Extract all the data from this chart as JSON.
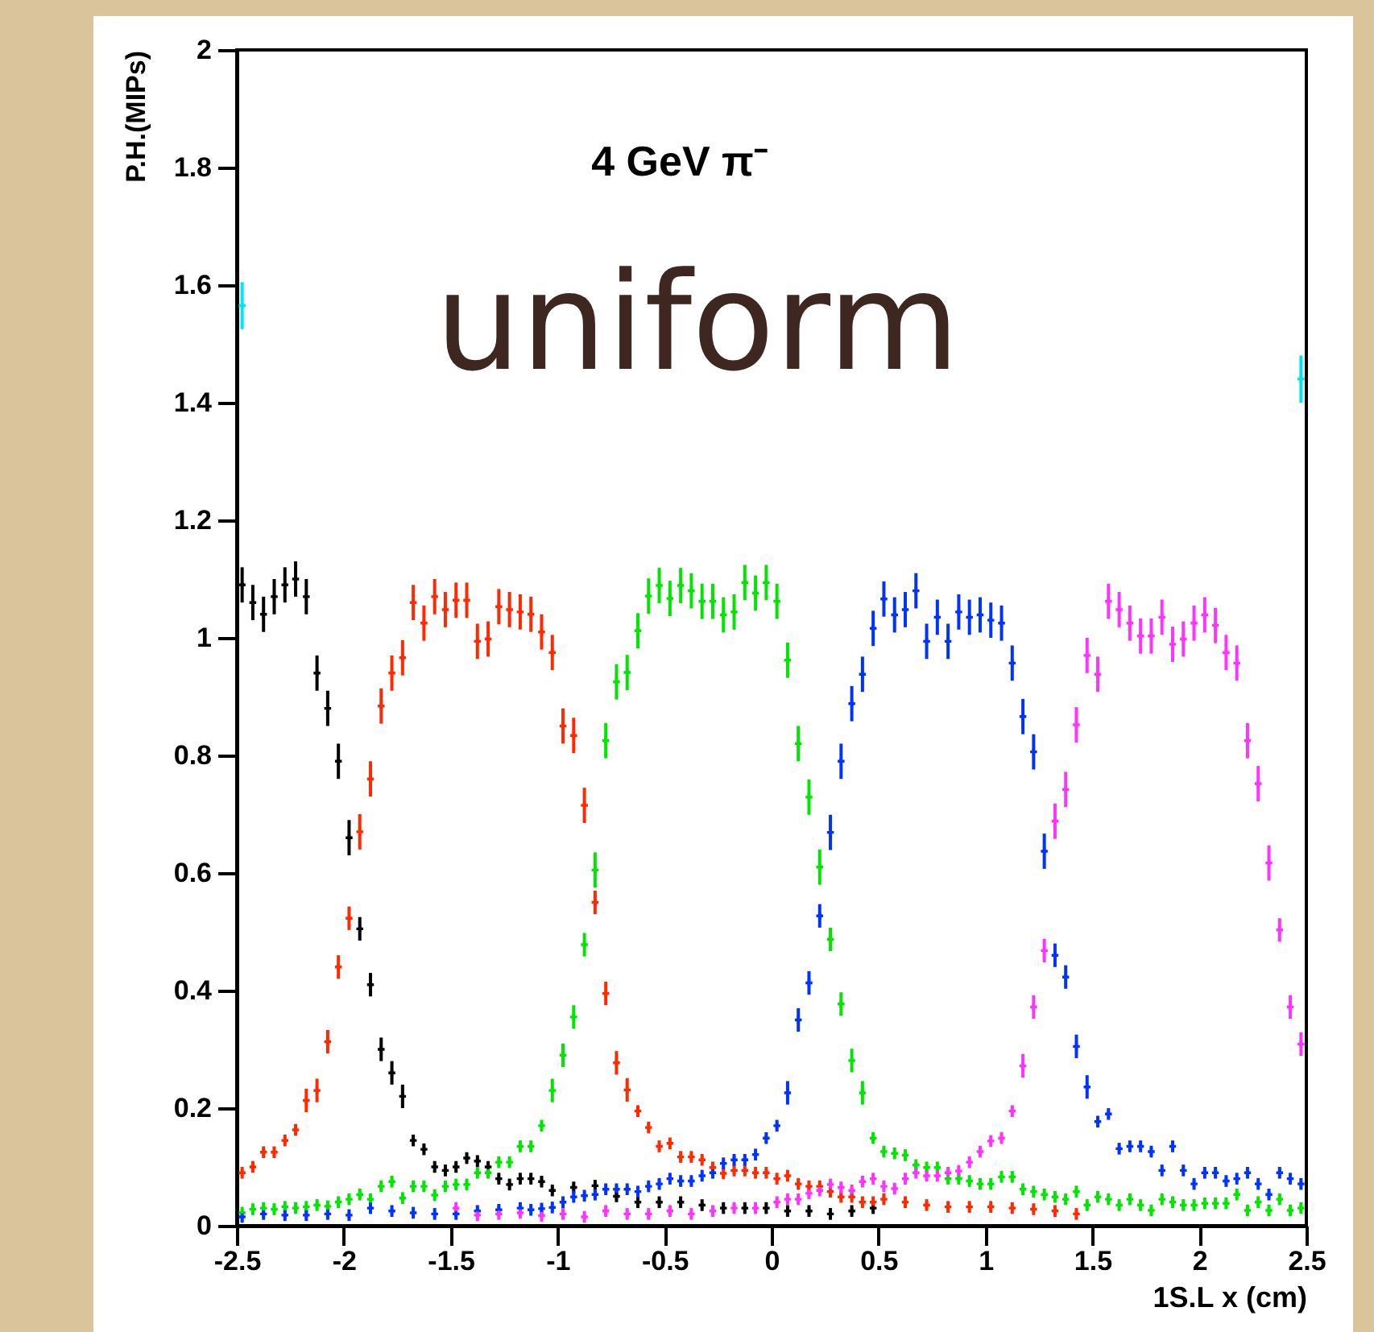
{
  "chart_data": {
    "type": "scatter",
    "xlabel": "1S.L x (cm)",
    "ylabel": "P.H.(MIPs)",
    "annotations": [
      "4 GeV π⁻",
      "uniform"
    ],
    "xlim": [
      -2.5,
      2.5
    ],
    "xticks": [
      -2.5,
      -2,
      -1.5,
      -1,
      -0.5,
      0,
      0.5,
      1,
      1.5,
      2,
      2.5
    ],
    "ylim": [
      0,
      2
    ],
    "yticks": [
      0,
      0.2,
      0.4,
      0.6,
      0.8,
      1,
      1.2,
      1.4,
      1.6,
      1.8,
      2
    ],
    "grid": false,
    "legend": false,
    "marker": "cross",
    "series": [
      {
        "color": "#000000",
        "x": [
          -2.475,
          -2.425,
          -2.375,
          -2.325,
          -2.275,
          -2.225,
          -2.175,
          -2.125,
          -2.075,
          -2.025,
          -1.975,
          -1.925,
          -1.875,
          -1.825,
          -1.775,
          -1.725,
          -1.675,
          -1.625,
          -1.575,
          -1.525,
          -1.475,
          -1.425,
          -1.375,
          -1.325,
          -1.275,
          -1.225,
          -1.175,
          -1.125,
          -1.075,
          -1.025,
          -0.925,
          -0.825,
          -0.725,
          -0.625,
          -0.525,
          -0.425,
          -0.325,
          -0.225,
          -0.125,
          -0.025,
          0.075,
          0.175,
          0.275,
          0.375,
          0.475
        ],
        "values": [
          1.09,
          1.06,
          1.04,
          1.07,
          1.09,
          1.1,
          1.07,
          0.94,
          0.88,
          0.79,
          0.66,
          0.505,
          0.41,
          0.3,
          0.26,
          0.22,
          0.145,
          0.13,
          0.1,
          0.094,
          0.1,
          0.115,
          0.11,
          0.1,
          0.08,
          0.07,
          0.08,
          0.08,
          0.075,
          0.06,
          0.065,
          0.068,
          0.05,
          0.04,
          0.04,
          0.04,
          0.035,
          0.03,
          0.03,
          0.03,
          0.025,
          0.025,
          0.02,
          0.025,
          0.03
        ],
        "errors": [
          0.03,
          0.03,
          0.03,
          0.03,
          0.03,
          0.03,
          0.03,
          0.03,
          0.03,
          0.03,
          0.03,
          0.02,
          0.02,
          0.02,
          0.02,
          0.02,
          0.01,
          0.01,
          0.01,
          0.01,
          0.01,
          0.01,
          0.01,
          0.01,
          0.01,
          0.01,
          0.01,
          0.01,
          0.01,
          0.01,
          0.01,
          0.01,
          0.01,
          0.01,
          0.01,
          0.01,
          0.01,
          0.01,
          0.01,
          0.01,
          0.01,
          0.01,
          0.01,
          0.01,
          0.01
        ]
      },
      {
        "color": "#ff2a00",
        "x": [
          -2.475,
          -2.425,
          -2.375,
          -2.325,
          -2.275,
          -2.225,
          -2.175,
          -2.125,
          -2.075,
          -2.025,
          -1.975,
          -1.925,
          -1.875,
          -1.825,
          -1.775,
          -1.725,
          -1.675,
          -1.625,
          -1.575,
          -1.525,
          -1.475,
          -1.425,
          -1.375,
          -1.325,
          -1.275,
          -1.225,
          -1.175,
          -1.125,
          -1.075,
          -1.025,
          -0.975,
          -0.925,
          -0.875,
          -0.825,
          -0.775,
          -0.725,
          -0.675,
          -0.625,
          -0.575,
          -0.525,
          -0.475,
          -0.425,
          -0.375,
          -0.325,
          -0.275,
          -0.225,
          -0.175,
          -0.125,
          -0.075,
          -0.025,
          0.025,
          0.075,
          0.125,
          0.175,
          0.225,
          0.275,
          0.325,
          0.375,
          0.425,
          0.475,
          0.525,
          0.625,
          0.725,
          0.825,
          0.925,
          1.025,
          1.125,
          1.225,
          1.325,
          1.425
        ],
        "values": [
          0.09,
          0.1,
          0.125,
          0.125,
          0.145,
          0.163,
          0.213,
          0.23,
          0.313,
          0.44,
          0.523,
          0.67,
          0.76,
          0.884,
          0.94,
          0.966,
          1.06,
          1.025,
          1.07,
          1.048,
          1.064,
          1.064,
          0.994,
          0.998,
          1.053,
          1.048,
          1.044,
          1.04,
          1.01,
          0.975,
          0.85,
          0.834,
          0.715,
          0.55,
          0.395,
          0.277,
          0.231,
          0.195,
          0.167,
          0.135,
          0.14,
          0.117,
          0.117,
          0.112,
          0.099,
          0.089,
          0.094,
          0.094,
          0.09,
          0.09,
          0.08,
          0.085,
          0.071,
          0.067,
          0.067,
          0.058,
          0.049,
          0.049,
          0.04,
          0.04,
          0.045,
          0.04,
          0.035,
          0.032,
          0.032,
          0.032,
          0.03,
          0.028,
          0.025,
          0.02
        ],
        "errors": [
          0.01,
          0.01,
          0.01,
          0.01,
          0.01,
          0.01,
          0.02,
          0.02,
          0.02,
          0.02,
          0.02,
          0.03,
          0.03,
          0.03,
          0.03,
          0.03,
          0.03,
          0.03,
          0.03,
          0.03,
          0.03,
          0.03,
          0.03,
          0.03,
          0.03,
          0.03,
          0.03,
          0.03,
          0.03,
          0.03,
          0.03,
          0.03,
          0.03,
          0.02,
          0.02,
          0.02,
          0.02,
          0.01,
          0.01,
          0.01,
          0.01,
          0.01,
          0.01,
          0.01,
          0.01,
          0.01,
          0.01,
          0.01,
          0.01,
          0.01,
          0.01,
          0.01,
          0.01,
          0.01,
          0.01,
          0.01,
          0.01,
          0.01,
          0.01,
          0.01,
          0.01,
          0.01,
          0.01,
          0.01,
          0.01,
          0.01,
          0.01,
          0.01,
          0.01,
          0.01
        ]
      },
      {
        "color": "#00e600",
        "x": [
          -2.475,
          -2.425,
          -2.375,
          -2.325,
          -2.275,
          -2.225,
          -2.175,
          -2.125,
          -2.075,
          -2.025,
          -1.975,
          -1.925,
          -1.875,
          -1.825,
          -1.775,
          -1.725,
          -1.675,
          -1.625,
          -1.575,
          -1.525,
          -1.475,
          -1.425,
          -1.375,
          -1.325,
          -1.275,
          -1.225,
          -1.175,
          -1.125,
          -1.075,
          -1.025,
          -0.975,
          -0.925,
          -0.875,
          -0.825,
          -0.775,
          -0.725,
          -0.675,
          -0.625,
          -0.575,
          -0.525,
          -0.475,
          -0.425,
          -0.375,
          -0.325,
          -0.275,
          -0.225,
          -0.175,
          -0.125,
          -0.075,
          -0.025,
          0.025,
          0.075,
          0.125,
          0.175,
          0.225,
          0.275,
          0.325,
          0.375,
          0.425,
          0.475,
          0.525,
          0.575,
          0.625,
          0.675,
          0.725,
          0.775,
          0.825,
          0.875,
          0.925,
          0.975,
          1.025,
          1.075,
          1.125,
          1.175,
          1.225,
          1.275,
          1.325,
          1.375,
          1.425,
          1.475,
          1.525,
          1.575,
          1.625,
          1.675,
          1.725,
          1.775,
          1.825,
          1.875,
          1.925,
          1.975,
          2.025,
          2.075,
          2.125,
          2.175,
          2.225,
          2.275,
          2.325,
          2.375,
          2.425,
          2.475
        ],
        "values": [
          0.022,
          0.028,
          0.03,
          0.028,
          0.032,
          0.03,
          0.032,
          0.035,
          0.033,
          0.04,
          0.045,
          0.053,
          0.045,
          0.067,
          0.075,
          0.047,
          0.067,
          0.067,
          0.052,
          0.067,
          0.07,
          0.07,
          0.09,
          0.09,
          0.108,
          0.108,
          0.135,
          0.135,
          0.17,
          0.23,
          0.29,
          0.355,
          0.478,
          0.605,
          0.825,
          0.925,
          0.941,
          1.012,
          1.071,
          1.089,
          1.067,
          1.089,
          1.08,
          1.062,
          1.062,
          1.039,
          1.044,
          1.094,
          1.076,
          1.094,
          1.062,
          0.962,
          0.82,
          0.729,
          0.61,
          0.487,
          0.377,
          0.281,
          0.226,
          0.149,
          0.126,
          0.123,
          0.12,
          0.103,
          0.099,
          0.099,
          0.08,
          0.08,
          0.076,
          0.071,
          0.071,
          0.083,
          0.083,
          0.062,
          0.058,
          0.053,
          0.049,
          0.045,
          0.058,
          0.035,
          0.049,
          0.045,
          0.035,
          0.045,
          0.035,
          0.026,
          0.045,
          0.04,
          0.035,
          0.035,
          0.038,
          0.038,
          0.038,
          0.053,
          0.026,
          0.04,
          0.026,
          0.045,
          0.026,
          0.03
        ],
        "errors": [
          0.01,
          0.01,
          0.01,
          0.01,
          0.01,
          0.01,
          0.01,
          0.01,
          0.01,
          0.01,
          0.01,
          0.01,
          0.01,
          0.01,
          0.01,
          0.01,
          0.01,
          0.01,
          0.01,
          0.01,
          0.01,
          0.01,
          0.01,
          0.01,
          0.01,
          0.01,
          0.01,
          0.01,
          0.01,
          0.02,
          0.02,
          0.02,
          0.02,
          0.03,
          0.03,
          0.03,
          0.03,
          0.03,
          0.03,
          0.03,
          0.03,
          0.03,
          0.03,
          0.03,
          0.03,
          0.03,
          0.03,
          0.03,
          0.03,
          0.03,
          0.03,
          0.03,
          0.03,
          0.03,
          0.03,
          0.02,
          0.02,
          0.02,
          0.02,
          0.01,
          0.01,
          0.01,
          0.01,
          0.01,
          0.01,
          0.01,
          0.01,
          0.01,
          0.01,
          0.01,
          0.01,
          0.01,
          0.01,
          0.01,
          0.01,
          0.01,
          0.01,
          0.01,
          0.01,
          0.01,
          0.01,
          0.01,
          0.01,
          0.01,
          0.01,
          0.01,
          0.01,
          0.01,
          0.01,
          0.01,
          0.01,
          0.01,
          0.01,
          0.01,
          0.01,
          0.01,
          0.01,
          0.01,
          0.01,
          0.01
        ]
      },
      {
        "color": "#0033ff",
        "x": [
          -2.475,
          -2.375,
          -2.275,
          -2.175,
          -2.075,
          -1.975,
          -1.875,
          -1.775,
          -1.675,
          -1.575,
          -1.475,
          -1.375,
          -1.275,
          -1.175,
          -1.125,
          -1.075,
          -1.025,
          -0.975,
          -0.925,
          -0.875,
          -0.825,
          -0.775,
          -0.725,
          -0.675,
          -0.625,
          -0.575,
          -0.525,
          -0.475,
          -0.425,
          -0.375,
          -0.325,
          -0.275,
          -0.225,
          -0.175,
          -0.125,
          -0.075,
          -0.025,
          0.025,
          0.075,
          0.125,
          0.175,
          0.225,
          0.275,
          0.325,
          0.375,
          0.425,
          0.475,
          0.525,
          0.575,
          0.625,
          0.675,
          0.725,
          0.775,
          0.825,
          0.875,
          0.925,
          0.975,
          1.025,
          1.075,
          1.125,
          1.175,
          1.225,
          1.275,
          1.325,
          1.375,
          1.425,
          1.475,
          1.525,
          1.575,
          1.625,
          1.675,
          1.725,
          1.775,
          1.825,
          1.875,
          1.925,
          1.975,
          2.025,
          2.075,
          2.125,
          2.175,
          2.225,
          2.275,
          2.325,
          2.375,
          2.425,
          2.475
        ],
        "values": [
          0.015,
          0.02,
          0.018,
          0.018,
          0.02,
          0.018,
          0.03,
          0.025,
          0.022,
          0.02,
          0.02,
          0.025,
          0.027,
          0.03,
          0.027,
          0.029,
          0.031,
          0.04,
          0.049,
          0.051,
          0.053,
          0.062,
          0.062,
          0.062,
          0.058,
          0.067,
          0.071,
          0.08,
          0.076,
          0.076,
          0.085,
          0.09,
          0.106,
          0.112,
          0.112,
          0.121,
          0.149,
          0.17,
          0.226,
          0.35,
          0.413,
          0.527,
          0.669,
          0.79,
          0.888,
          0.938,
          1.016,
          1.066,
          1.039,
          1.048,
          1.08,
          0.994,
          1.035,
          0.994,
          1.044,
          1.035,
          1.039,
          1.03,
          1.025,
          0.957,
          0.866,
          0.806,
          0.637,
          0.46,
          0.423,
          0.305,
          0.236,
          0.177,
          0.19,
          0.131,
          0.135,
          0.135,
          0.126,
          0.094,
          0.135,
          0.094,
          0.071,
          0.09,
          0.09,
          0.076,
          0.08,
          0.09,
          0.071,
          0.053,
          0.09,
          0.08,
          0.071
        ],
        "errors": [
          0.01,
          0.01,
          0.01,
          0.01,
          0.01,
          0.01,
          0.01,
          0.01,
          0.01,
          0.01,
          0.01,
          0.01,
          0.01,
          0.01,
          0.01,
          0.01,
          0.01,
          0.01,
          0.01,
          0.01,
          0.01,
          0.01,
          0.01,
          0.01,
          0.01,
          0.01,
          0.01,
          0.01,
          0.01,
          0.01,
          0.01,
          0.01,
          0.01,
          0.01,
          0.01,
          0.01,
          0.01,
          0.01,
          0.02,
          0.02,
          0.02,
          0.02,
          0.03,
          0.03,
          0.03,
          0.03,
          0.03,
          0.03,
          0.03,
          0.03,
          0.03,
          0.03,
          0.03,
          0.03,
          0.03,
          0.03,
          0.03,
          0.03,
          0.03,
          0.03,
          0.03,
          0.03,
          0.03,
          0.02,
          0.02,
          0.02,
          0.02,
          0.01,
          0.01,
          0.01,
          0.01,
          0.01,
          0.01,
          0.01,
          0.01,
          0.01,
          0.01,
          0.01,
          0.01,
          0.01,
          0.01,
          0.01,
          0.01,
          0.01,
          0.01,
          0.01,
          0.01
        ]
      },
      {
        "color": "#ff33ff",
        "x": [
          -1.475,
          -1.375,
          -1.275,
          -1.175,
          -1.075,
          -0.975,
          -0.875,
          -0.775,
          -0.675,
          -0.575,
          -0.475,
          -0.375,
          -0.275,
          -0.175,
          -0.075,
          0.025,
          0.075,
          0.125,
          0.175,
          0.225,
          0.275,
          0.325,
          0.375,
          0.425,
          0.475,
          0.525,
          0.575,
          0.625,
          0.675,
          0.725,
          0.775,
          0.825,
          0.875,
          0.925,
          0.975,
          1.025,
          1.075,
          1.125,
          1.175,
          1.225,
          1.275,
          1.325,
          1.375,
          1.425,
          1.475,
          1.525,
          1.575,
          1.625,
          1.675,
          1.725,
          1.775,
          1.825,
          1.875,
          1.925,
          1.975,
          2.025,
          2.075,
          2.125,
          2.175,
          2.225,
          2.275,
          2.325,
          2.375,
          2.425,
          2.475
        ],
        "values": [
          0.03,
          0.018,
          0.02,
          0.022,
          0.017,
          0.02,
          0.015,
          0.025,
          0.02,
          0.02,
          0.025,
          0.02,
          0.025,
          0.03,
          0.03,
          0.04,
          0.045,
          0.045,
          0.055,
          0.06,
          0.07,
          0.065,
          0.06,
          0.075,
          0.08,
          0.067,
          0.063,
          0.08,
          0.09,
          0.085,
          0.085,
          0.09,
          0.093,
          0.108,
          0.126,
          0.144,
          0.149,
          0.195,
          0.272,
          0.372,
          0.468,
          0.688,
          0.742,
          0.852,
          0.97,
          0.938,
          1.062,
          1.048,
          1.025,
          1.003,
          1.003,
          1.035,
          0.989,
          0.998,
          1.025,
          1.039,
          1.021,
          0.975,
          0.957,
          0.825,
          0.752,
          0.617,
          0.503,
          0.372,
          0.309
        ],
        "errors": [
          0.01,
          0.01,
          0.01,
          0.01,
          0.01,
          0.01,
          0.01,
          0.01,
          0.01,
          0.01,
          0.01,
          0.01,
          0.01,
          0.01,
          0.01,
          0.01,
          0.01,
          0.01,
          0.01,
          0.01,
          0.01,
          0.01,
          0.01,
          0.01,
          0.01,
          0.01,
          0.01,
          0.01,
          0.01,
          0.01,
          0.01,
          0.01,
          0.01,
          0.01,
          0.01,
          0.01,
          0.01,
          0.01,
          0.02,
          0.02,
          0.02,
          0.03,
          0.03,
          0.03,
          0.03,
          0.03,
          0.03,
          0.03,
          0.03,
          0.03,
          0.03,
          0.03,
          0.03,
          0.03,
          0.03,
          0.03,
          0.03,
          0.03,
          0.03,
          0.03,
          0.03,
          0.03,
          0.02,
          0.02,
          0.02
        ]
      },
      {
        "color": "#00e5ee",
        "x": [
          -2.475,
          2.475
        ],
        "values": [
          1.565,
          1.44
        ],
        "errors": [
          0.04,
          0.04
        ]
      }
    ]
  }
}
